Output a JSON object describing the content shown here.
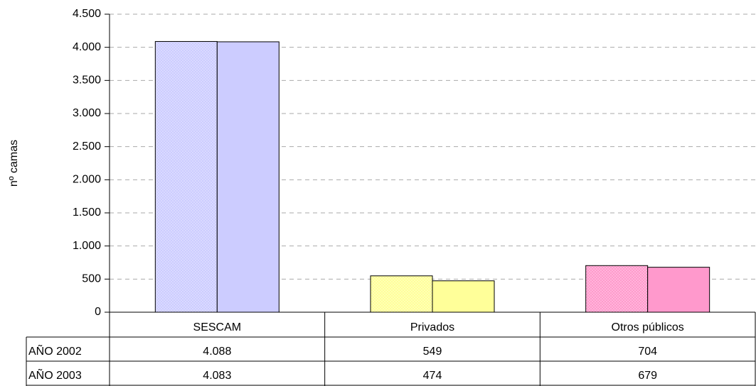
{
  "chart_data": {
    "type": "bar",
    "y_label": "nº camas",
    "categories": [
      "SESCAM",
      "Privados",
      "Otros públicos"
    ],
    "colors": [
      "#ccccff",
      "#ffff99",
      "#ff99cc"
    ],
    "series": [
      {
        "name": "AÑO 2002",
        "pattern": "dotted",
        "values": [
          4088,
          549,
          704
        ],
        "value_labels": [
          "4.088",
          "549",
          "704"
        ]
      },
      {
        "name": "AÑO 2003",
        "values": [
          4083,
          474,
          679
        ],
        "value_labels": [
          "4.083",
          "474",
          "679"
        ]
      }
    ],
    "ylim": [
      0,
      4500
    ],
    "yticks": [
      0,
      500,
      {
        "value": 1000,
        "label": "1.000"
      },
      {
        "value": 1500,
        "label": "1.500"
      },
      {
        "value": 2000,
        "label": "2.000"
      },
      {
        "value": 2500,
        "label": "2.500"
      },
      {
        "value": 3000,
        "label": "3.000"
      },
      {
        "value": 3500,
        "label": "3.500"
      },
      {
        "value": 4000,
        "label": "4.000"
      },
      {
        "value": 4500,
        "label": "4.500"
      }
    ],
    "grid": true,
    "data_table": true
  }
}
